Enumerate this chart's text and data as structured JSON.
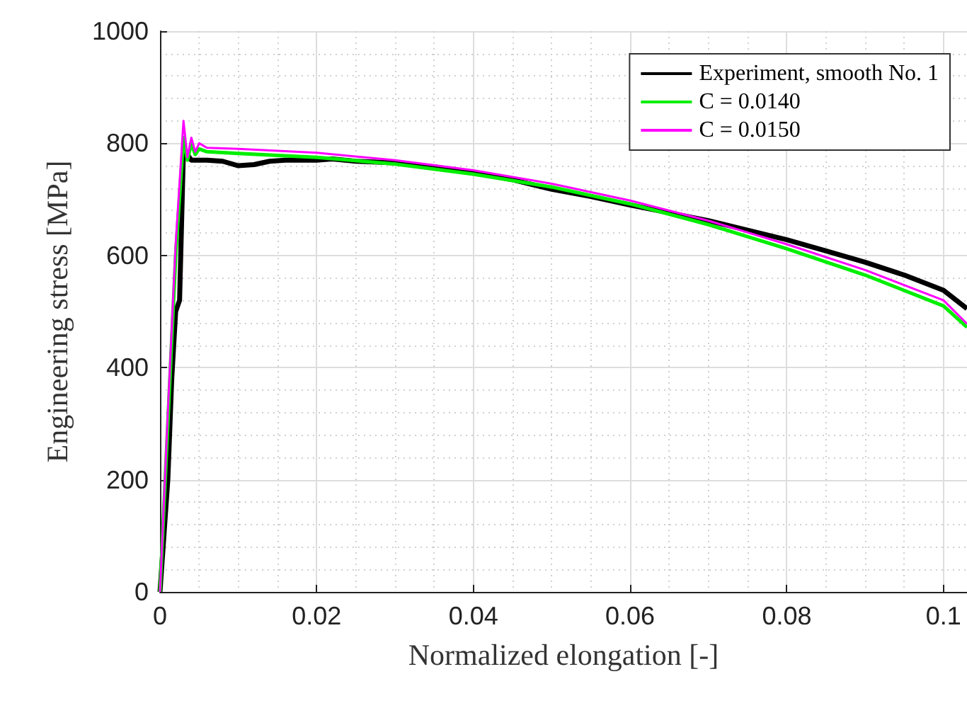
{
  "chart_data": {
    "type": "line",
    "xlabel": "Normalized elongation [-]",
    "ylabel": "Engineering stress [MPa]",
    "xlim": [
      0,
      0.103
    ],
    "ylim": [
      0,
      1000
    ],
    "xticks": [
      0,
      0.02,
      0.04,
      0.06,
      0.08,
      0.1
    ],
    "yticks": [
      0,
      200,
      400,
      600,
      800,
      1000
    ],
    "grid": true,
    "legend": "top right",
    "marker": "none",
    "line_style": "solid",
    "series": [
      {
        "name": "Experiment, smooth No. 1",
        "color": "#000000",
        "x": [
          0,
          0.0005,
          0.001,
          0.0015,
          0.002,
          0.0025,
          0.003,
          0.0035,
          0.004,
          0.006,
          0.008,
          0.01,
          0.012,
          0.014,
          0.016,
          0.02,
          0.022,
          0.025,
          0.03,
          0.035,
          0.04,
          0.045,
          0.05,
          0.055,
          0.06,
          0.065,
          0.07,
          0.075,
          0.08,
          0.085,
          0.09,
          0.095,
          0.1,
          0.103
        ],
        "values": [
          0,
          100,
          200,
          380,
          500,
          520,
          790,
          780,
          770,
          770,
          768,
          760,
          762,
          768,
          770,
          770,
          772,
          768,
          765,
          758,
          748,
          735,
          718,
          705,
          690,
          676,
          662,
          645,
          628,
          608,
          588,
          565,
          538,
          505
        ]
      },
      {
        "name": "C = 0.0140",
        "color": "#00ee00",
        "x": [
          0,
          0.001,
          0.002,
          0.003,
          0.0035,
          0.004,
          0.0045,
          0.005,
          0.006,
          0.01,
          0.02,
          0.03,
          0.04,
          0.05,
          0.06,
          0.07,
          0.08,
          0.09,
          0.1,
          0.103
        ],
        "values": [
          0,
          300,
          600,
          810,
          770,
          800,
          780,
          790,
          785,
          782,
          775,
          763,
          745,
          722,
          692,
          655,
          612,
          565,
          510,
          472
        ]
      },
      {
        "name": "C = 0.0150",
        "color": "#ff00ff",
        "x": [
          0,
          0.001,
          0.002,
          0.003,
          0.0035,
          0.004,
          0.0045,
          0.005,
          0.006,
          0.01,
          0.02,
          0.03,
          0.04,
          0.05,
          0.06,
          0.07,
          0.08,
          0.09,
          0.1,
          0.103
        ],
        "values": [
          0,
          320,
          620,
          840,
          775,
          810,
          785,
          800,
          792,
          790,
          783,
          770,
          752,
          728,
          698,
          662,
          620,
          574,
          520,
          478
        ]
      }
    ]
  }
}
